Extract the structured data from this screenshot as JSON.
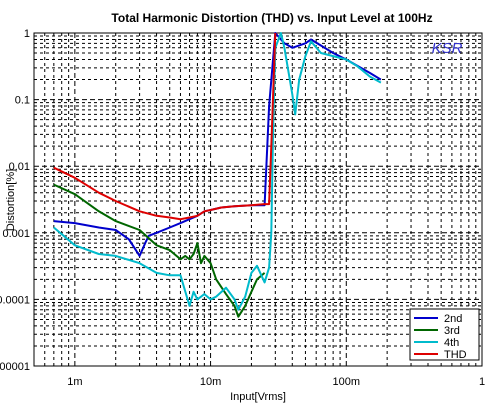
{
  "chart_data": {
    "type": "line",
    "title": "Total Harmonic Distortion (THD) vs. Input Level at 100Hz",
    "xlabel": "Input[Vrms]",
    "ylabel": "Distortion[%]",
    "x_scale": "log",
    "y_scale": "log",
    "xlim": [
      0.0005,
      1
    ],
    "ylim": [
      1e-05,
      1
    ],
    "x_ticks": [
      {
        "value": 0.001,
        "label": "1m"
      },
      {
        "value": 0.01,
        "label": "10m"
      },
      {
        "value": 0.1,
        "label": "100m"
      },
      {
        "value": 1,
        "label": "1"
      }
    ],
    "y_ticks": [
      {
        "value": 1,
        "label": "1"
      },
      {
        "value": 0.1,
        "label": "0.1"
      },
      {
        "value": 0.01,
        "label": "0.01"
      },
      {
        "value": 0.001,
        "label": "0.001"
      },
      {
        "value": 0.0001,
        "label": "0.0001"
      },
      {
        "value": 1e-05,
        "label": "0.00001"
      }
    ],
    "grid": true,
    "legend_position": "bottom-right",
    "watermark": "KSR",
    "watermark_color": "#3333cc",
    "series": [
      {
        "name": "2nd",
        "color": "#0000cc",
        "points": [
          [
            0.0007,
            0.0015
          ],
          [
            0.001,
            0.0014
          ],
          [
            0.0015,
            0.0012
          ],
          [
            0.002,
            0.0011
          ],
          [
            0.0025,
            0.0008
          ],
          [
            0.003,
            0.00045
          ],
          [
            0.0033,
            0.0007
          ],
          [
            0.0035,
            0.0009
          ],
          [
            0.004,
            0.001
          ],
          [
            0.005,
            0.0012
          ],
          [
            0.006,
            0.0014
          ],
          [
            0.007,
            0.0016
          ],
          [
            0.008,
            0.0018
          ],
          [
            0.009,
            0.0021
          ],
          [
            0.01,
            0.0022
          ],
          [
            0.012,
            0.0024
          ],
          [
            0.015,
            0.0025
          ],
          [
            0.02,
            0.0026
          ],
          [
            0.025,
            0.0026
          ],
          [
            0.027,
            0.08
          ],
          [
            0.03,
            1.1
          ],
          [
            0.035,
            0.7
          ],
          [
            0.04,
            0.6
          ],
          [
            0.05,
            0.7
          ],
          [
            0.055,
            0.8
          ],
          [
            0.065,
            0.65
          ],
          [
            0.08,
            0.5
          ],
          [
            0.1,
            0.4
          ],
          [
            0.15,
            0.25
          ],
          [
            0.18,
            0.2
          ]
        ]
      },
      {
        "name": "3rd",
        "color": "#006600",
        "points": [
          [
            0.0007,
            0.0053
          ],
          [
            0.001,
            0.0038
          ],
          [
            0.0015,
            0.0021
          ],
          [
            0.002,
            0.0015
          ],
          [
            0.003,
            0.0011
          ],
          [
            0.004,
            0.00065
          ],
          [
            0.005,
            0.00055
          ],
          [
            0.006,
            0.0004
          ],
          [
            0.0065,
            0.00045
          ],
          [
            0.007,
            0.0004
          ],
          [
            0.0075,
            0.00048
          ],
          [
            0.008,
            0.0007
          ],
          [
            0.0085,
            0.00035
          ],
          [
            0.009,
            0.00045
          ],
          [
            0.01,
            0.00035
          ],
          [
            0.011,
            0.0002
          ],
          [
            0.013,
            0.00012
          ],
          [
            0.015,
            8e-05
          ],
          [
            0.016,
            5.5e-05
          ],
          [
            0.018,
            8e-05
          ],
          [
            0.02,
            0.00013
          ],
          [
            0.022,
            0.0002
          ],
          [
            0.025,
            0.00025
          ]
        ]
      },
      {
        "name": "4th",
        "color": "#00bbcc",
        "points": [
          [
            0.0007,
            0.0012
          ],
          [
            0.001,
            0.00065
          ],
          [
            0.0015,
            0.00048
          ],
          [
            0.002,
            0.00045
          ],
          [
            0.003,
            0.00035
          ],
          [
            0.004,
            0.00025
          ],
          [
            0.005,
            0.00023
          ],
          [
            0.006,
            0.00023
          ],
          [
            0.007,
            8e-05
          ],
          [
            0.0075,
            0.00013
          ],
          [
            0.008,
            0.0001
          ],
          [
            0.009,
            0.00012
          ],
          [
            0.01,
            0.0001
          ],
          [
            0.011,
            0.00011
          ],
          [
            0.013,
            0.00015
          ],
          [
            0.015,
            0.0001
          ],
          [
            0.016,
            7e-05
          ],
          [
            0.018,
            0.00011
          ],
          [
            0.02,
            0.00025
          ],
          [
            0.022,
            0.00032
          ],
          [
            0.025,
            0.00018
          ],
          [
            0.027,
            0.0003
          ],
          [
            0.028,
            0.001
          ],
          [
            0.029,
            0.05
          ],
          [
            0.03,
            0.6
          ],
          [
            0.033,
            1.0
          ],
          [
            0.035,
            0.6
          ],
          [
            0.04,
            0.12
          ],
          [
            0.042,
            0.06
          ],
          [
            0.045,
            0.2
          ],
          [
            0.05,
            0.45
          ],
          [
            0.055,
            0.75
          ],
          [
            0.065,
            0.5
          ],
          [
            0.08,
            0.45
          ],
          [
            0.1,
            0.4
          ],
          [
            0.12,
            0.32
          ],
          [
            0.15,
            0.22
          ],
          [
            0.18,
            0.18
          ]
        ]
      },
      {
        "name": "THD",
        "color": "#dd0000",
        "points": [
          [
            0.0007,
            0.0095
          ],
          [
            0.001,
            0.0067
          ],
          [
            0.0015,
            0.004
          ],
          [
            0.002,
            0.003
          ],
          [
            0.003,
            0.0021
          ],
          [
            0.004,
            0.0018
          ],
          [
            0.005,
            0.0017
          ],
          [
            0.006,
            0.0016
          ],
          [
            0.007,
            0.0017
          ],
          [
            0.008,
            0.0018
          ],
          [
            0.009,
            0.0021
          ],
          [
            0.01,
            0.0022
          ],
          [
            0.012,
            0.0024
          ],
          [
            0.015,
            0.0025
          ],
          [
            0.02,
            0.0026
          ],
          [
            0.025,
            0.0027
          ],
          [
            0.027,
            0.0027
          ],
          [
            0.028,
            0.02
          ],
          [
            0.03,
            1.1
          ]
        ]
      }
    ]
  }
}
